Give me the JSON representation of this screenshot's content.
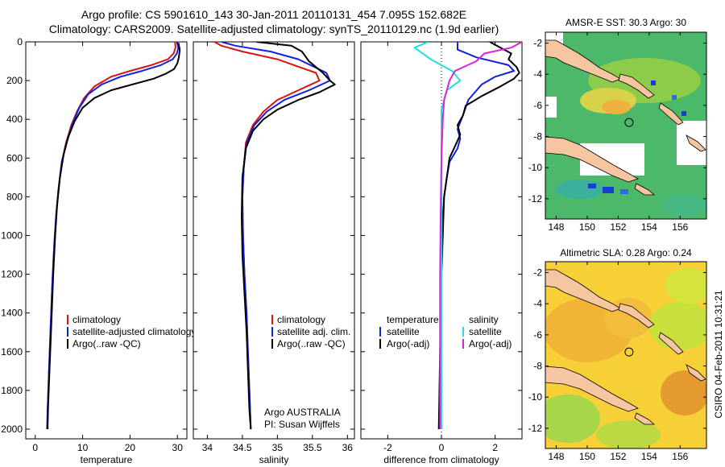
{
  "header": {
    "title_line1": "Argo profile: CS 5901610_143 30-Jan-2011 20110131_454 7.095S 152.682E",
    "title_line2": "Climatology: CARS2009. Satellite-adjusted climatology: synTS_20110129.nc (1.9d earlier)"
  },
  "colors": {
    "climatology": "#dd1111",
    "satellite": "#1122dd",
    "argo": "#000000",
    "sal_satellite": "#22dddd",
    "sal_argo": "#dd22dd",
    "land": "#f5c6a0"
  },
  "footer": {
    "credit": "CSIRO 04-Feb-2011 10:31:21"
  },
  "chart_data": [
    {
      "type": "line",
      "name": "temperature-profile",
      "xlabel": "temperature",
      "xlim": [
        -2,
        32
      ],
      "ylim": [
        2050,
        0
      ],
      "xticks": [
        0,
        10,
        20,
        30
      ],
      "yticks": [
        0,
        200,
        400,
        600,
        800,
        1000,
        1200,
        1400,
        1600,
        1800,
        2000
      ],
      "legend": [
        "climatology",
        "satellite-adjusted climatology",
        "Argo(..raw -QC)"
      ],
      "series": [
        {
          "name": "climatology",
          "color": "#dd1111",
          "points": [
            [
              29.5,
              0
            ],
            [
              29.6,
              30
            ],
            [
              29.2,
              60
            ],
            [
              28,
              90
            ],
            [
              24.5,
              120
            ],
            [
              20,
              150
            ],
            [
              16,
              180
            ],
            [
              12.5,
              230
            ],
            [
              10.3,
              290
            ],
            [
              8.8,
              360
            ],
            [
              7.6,
              430
            ],
            [
              6.5,
              520
            ],
            [
              5.6,
              620
            ],
            [
              4.9,
              760
            ],
            [
              4.4,
              900
            ],
            [
              4.0,
              1050
            ],
            [
              3.6,
              1250
            ],
            [
              3.2,
              1500
            ],
            [
              2.9,
              1700
            ],
            [
              2.6,
              1900
            ],
            [
              2.5,
              2000
            ]
          ]
        },
        {
          "name": "satellite-adjusted climatology",
          "color": "#1122dd",
          "points": [
            [
              29.9,
              0
            ],
            [
              30.2,
              30
            ],
            [
              29.9,
              60
            ],
            [
              29,
              90
            ],
            [
              26.5,
              120
            ],
            [
              22.5,
              150
            ],
            [
              18,
              180
            ],
            [
              14,
              220
            ],
            [
              11.2,
              270
            ],
            [
              9.3,
              340
            ],
            [
              7.9,
              420
            ],
            [
              6.6,
              520
            ],
            [
              5.6,
              620
            ],
            [
              4.9,
              760
            ],
            [
              4.4,
              900
            ],
            [
              4.0,
              1050
            ],
            [
              3.6,
              1250
            ],
            [
              3.2,
              1500
            ],
            [
              2.9,
              1700
            ],
            [
              2.6,
              1900
            ],
            [
              2.5,
              2000
            ]
          ]
        },
        {
          "name": "Argo(..raw -QC)",
          "color": "#000000",
          "points": [
            [
              30.2,
              5
            ],
            [
              30.5,
              40
            ],
            [
              30.3,
              80
            ],
            [
              30.0,
              110
            ],
            [
              29.3,
              140
            ],
            [
              27.5,
              165
            ],
            [
              25,
              190
            ],
            [
              20.5,
              220
            ],
            [
              16,
              250
            ],
            [
              12.5,
              290
            ],
            [
              10,
              340
            ],
            [
              8.3,
              410
            ],
            [
              7,
              490
            ],
            [
              6,
              580
            ],
            [
              5.2,
              700
            ],
            [
              4.6,
              850
            ],
            [
              4.2,
              1000
            ],
            [
              3.8,
              1200
            ],
            [
              3.4,
              1450
            ],
            [
              3,
              1700
            ],
            [
              2.7,
              1900
            ],
            [
              2.6,
              2000
            ]
          ]
        }
      ]
    },
    {
      "type": "line",
      "name": "salinity-profile",
      "xlabel": "salinity",
      "xlim": [
        33.8,
        36.1
      ],
      "ylim": [
        2050,
        0
      ],
      "xticks": [
        34,
        34.5,
        35,
        35.5,
        36
      ],
      "legend": [
        "climatology",
        "satellite adj. clim.",
        "Argo(..raw -QC)"
      ],
      "annotation": [
        "Argo AUSTRALIA",
        "PI: Susan Wijffels"
      ],
      "series": [
        {
          "name": "climatology",
          "color": "#dd1111",
          "points": [
            [
              34.1,
              0
            ],
            [
              34.2,
              20
            ],
            [
              34.5,
              50
            ],
            [
              35.0,
              90
            ],
            [
              35.55,
              160
            ],
            [
              35.6,
              200
            ],
            [
              35.3,
              250
            ],
            [
              35.0,
              300
            ],
            [
              34.8,
              360
            ],
            [
              34.65,
              430
            ],
            [
              34.55,
              520
            ],
            [
              34.52,
              650
            ],
            [
              34.5,
              800
            ],
            [
              34.51,
              1000
            ],
            [
              34.53,
              1200
            ],
            [
              34.56,
              1400
            ],
            [
              34.58,
              1600
            ],
            [
              34.6,
              1800
            ],
            [
              34.62,
              2000
            ]
          ]
        },
        {
          "name": "satellite adj. clim.",
          "color": "#1122dd",
          "points": [
            [
              34.2,
              0
            ],
            [
              34.4,
              20
            ],
            [
              34.9,
              50
            ],
            [
              35.3,
              90
            ],
            [
              35.7,
              160
            ],
            [
              35.75,
              200
            ],
            [
              35.45,
              250
            ],
            [
              35.1,
              300
            ],
            [
              34.85,
              360
            ],
            [
              34.67,
              430
            ],
            [
              34.56,
              520
            ],
            [
              34.52,
              650
            ],
            [
              34.5,
              800
            ],
            [
              34.51,
              1000
            ],
            [
              34.53,
              1200
            ],
            [
              34.56,
              1400
            ],
            [
              34.58,
              1600
            ],
            [
              34.6,
              1800
            ],
            [
              34.62,
              2000
            ]
          ]
        },
        {
          "name": "Argo(..raw -QC)",
          "color": "#000000",
          "points": [
            [
              34.7,
              0
            ],
            [
              35.2,
              20
            ],
            [
              35.35,
              50
            ],
            [
              35.45,
              100
            ],
            [
              35.65,
              160
            ],
            [
              35.75,
              200
            ],
            [
              35.82,
              220
            ],
            [
              35.6,
              260
            ],
            [
              35.3,
              300
            ],
            [
              35.0,
              350
            ],
            [
              34.8,
              400
            ],
            [
              34.65,
              460
            ],
            [
              34.55,
              550
            ],
            [
              34.5,
              700
            ],
            [
              34.49,
              900
            ],
            [
              34.5,
              1100
            ],
            [
              34.53,
              1300
            ],
            [
              34.56,
              1500
            ],
            [
              34.58,
              1700
            ],
            [
              34.6,
              1900
            ],
            [
              34.62,
              2000
            ]
          ]
        }
      ]
    },
    {
      "type": "line",
      "name": "difference-from-climatology",
      "xlabel": "difference from climatology",
      "xlim": [
        -3,
        3
      ],
      "ylim": [
        2050,
        0
      ],
      "xticks": [
        -2,
        0,
        2
      ],
      "legend_temperature": {
        "heading": "temperature",
        "items": [
          "satellite",
          "Argo(-adj)"
        ]
      },
      "legend_salinity": {
        "heading": "salinity",
        "items": [
          "satellite",
          "Argo(-adj)"
        ]
      },
      "series": [
        {
          "name": "temperature satellite",
          "color": "#1122dd",
          "points": [
            [
              0.6,
              0
            ],
            [
              0.6,
              40
            ],
            [
              1.3,
              80
            ],
            [
              2.5,
              120
            ],
            [
              2.7,
              150
            ],
            [
              2,
              180
            ],
            [
              1.5,
              220
            ],
            [
              1.0,
              300
            ],
            [
              0.8,
              380
            ],
            [
              0.6,
              450
            ],
            [
              0.7,
              500
            ],
            [
              0.6,
              550
            ],
            [
              0.3,
              620
            ],
            [
              0.2,
              700
            ],
            [
              0.1,
              800
            ],
            [
              0,
              1000
            ],
            [
              0,
              2000
            ]
          ]
        },
        {
          "name": "temperature Argo(-adj)",
          "color": "#000000",
          "points": [
            [
              1.8,
              0
            ],
            [
              2.2,
              30
            ],
            [
              2.6,
              60
            ],
            [
              2.5,
              90
            ],
            [
              2.8,
              130
            ],
            [
              2.9,
              160
            ],
            [
              2.7,
              190
            ],
            [
              2.2,
              230
            ],
            [
              1.5,
              280
            ],
            [
              0.9,
              330
            ],
            [
              0.8,
              380
            ],
            [
              0.6,
              430
            ],
            [
              0.7,
              480
            ],
            [
              0.5,
              540
            ],
            [
              0.3,
              600
            ],
            [
              0.2,
              700
            ],
            [
              0.1,
              800
            ],
            [
              0.05,
              1000
            ],
            [
              0,
              1200
            ],
            [
              -0.05,
              1600
            ],
            [
              -0.1,
              2000
            ]
          ]
        },
        {
          "name": "salinity satellite",
          "color": "#22dddd",
          "points": [
            [
              -0.5,
              0
            ],
            [
              -1.0,
              30
            ],
            [
              -0.7,
              60
            ],
            [
              -0.4,
              90
            ],
            [
              0.4,
              150
            ],
            [
              0.7,
              200
            ],
            [
              0.2,
              250
            ],
            [
              0.1,
              300
            ],
            [
              0,
              350
            ],
            [
              0,
              500
            ],
            [
              0,
              700
            ],
            [
              0,
              1000
            ],
            [
              0,
              2000
            ]
          ]
        },
        {
          "name": "salinity Argo(-adj)",
          "color": "#dd22dd",
          "points": [
            [
              3,
              0
            ],
            [
              2.6,
              30
            ],
            [
              1.6,
              60
            ],
            [
              1.3,
              100
            ],
            [
              0.5,
              150
            ],
            [
              0.3,
              200
            ],
            [
              0.2,
              250
            ],
            [
              0.1,
              300
            ],
            [
              0.05,
              400
            ],
            [
              0,
              600
            ],
            [
              -0.03,
              900
            ],
            [
              -0.05,
              1200
            ],
            [
              -0.05,
              1600
            ],
            [
              -0.05,
              2000
            ]
          ]
        }
      ]
    },
    {
      "type": "heatmap",
      "name": "sst-map",
      "title": "AMSR-E SST: 30.3  Argo: 30",
      "xlim": [
        147.3,
        157.7
      ],
      "ylim": [
        -13.3,
        -1.3
      ],
      "xticks": [
        148,
        150,
        152,
        154,
        156
      ],
      "yticks": [
        -2,
        -4,
        -6,
        -8,
        -10,
        -12
      ],
      "marker": {
        "lon": 152.7,
        "lat": -7.1
      }
    },
    {
      "type": "heatmap",
      "name": "sla-map",
      "title": "Altimetric SLA: 0.28  Argo: 0.24",
      "xlim": [
        147.3,
        157.7
      ],
      "ylim": [
        -13.3,
        -1.3
      ],
      "xticks": [
        148,
        150,
        152,
        154,
        156
      ],
      "yticks": [
        -2,
        -4,
        -6,
        -8,
        -10,
        -12
      ],
      "marker": {
        "lon": 152.7,
        "lat": -7.1
      }
    }
  ]
}
